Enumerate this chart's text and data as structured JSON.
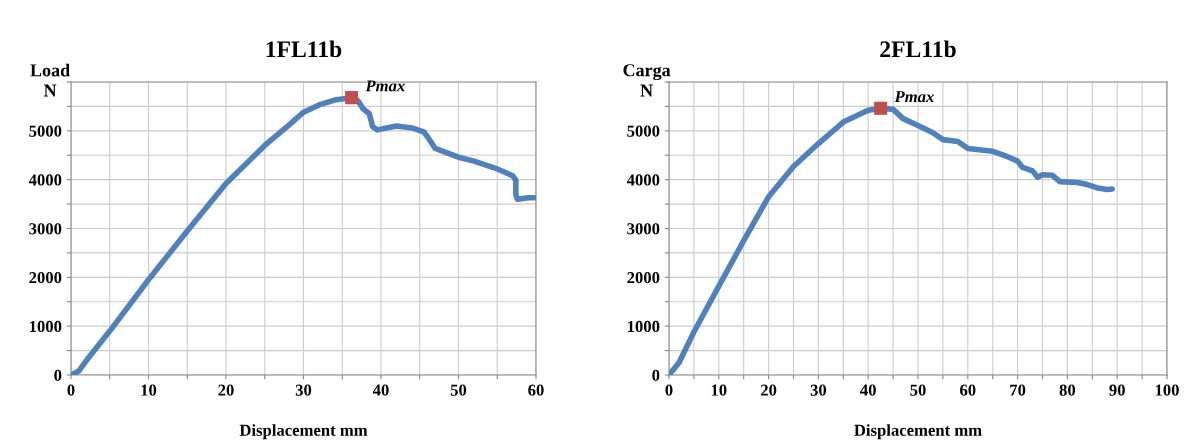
{
  "chart_data": [
    {
      "type": "line",
      "title": "1FL11b",
      "xlabel": "Displacement mm",
      "ylabel": "Load\nN",
      "grid": true,
      "xlim": [
        0,
        60
      ],
      "ylim": [
        0,
        6000
      ],
      "xticks": [
        0,
        {
          "value": 5,
          "label": null
        },
        10,
        {
          "value": 15,
          "label": null
        },
        20,
        {
          "value": 25,
          "label": null
        },
        30,
        {
          "value": 35,
          "label": null
        },
        40,
        {
          "value": 45,
          "label": null
        },
        50,
        {
          "value": 55,
          "label": null
        },
        60
      ],
      "yticks": [
        0,
        {
          "value": 500,
          "label": null
        },
        1000,
        {
          "value": 1500,
          "label": null
        },
        2000,
        {
          "value": 2500,
          "label": null
        },
        3000,
        {
          "value": 3500,
          "label": null
        },
        4000,
        {
          "value": 4500,
          "label": null
        },
        5000,
        {
          "value": 5500,
          "label": null
        },
        {
          "value": 6000,
          "label": null
        }
      ],
      "annotations": [
        {
          "text": "Pmax",
          "x": 36.2,
          "y": 5680
        }
      ],
      "series": [
        {
          "color": "#4f81bd",
          "x": [
            0,
            1,
            2,
            5,
            10,
            15,
            20,
            25,
            28,
            30,
            32,
            34,
            36.2,
            37,
            37.7,
            38.5,
            38.9,
            39.5,
            42,
            44,
            45.5,
            46,
            47,
            48,
            50,
            52,
            55,
            57,
            57.4,
            57.4,
            57.6,
            59,
            60
          ],
          "values": [
            0,
            80,
            300,
            900,
            1950,
            2950,
            3920,
            4700,
            5100,
            5380,
            5530,
            5630,
            5680,
            5620,
            5450,
            5350,
            5090,
            5020,
            5100,
            5060,
            4980,
            4880,
            4640,
            4580,
            4460,
            4380,
            4220,
            4080,
            3990,
            3700,
            3600,
            3630,
            3630
          ]
        },
        {
          "type": "scatter",
          "color": "#c0504d",
          "marker": "square",
          "x": [
            36.2
          ],
          "values": [
            5680
          ]
        }
      ]
    },
    {
      "type": "line",
      "title": "2FL11b",
      "xlabel": "Displacement mm",
      "ylabel": "Carga\nN",
      "grid": true,
      "xlim": [
        0,
        100
      ],
      "ylim": [
        0,
        6000
      ],
      "xticks": [
        0,
        {
          "value": 5,
          "label": null
        },
        10,
        {
          "value": 15,
          "label": null
        },
        20,
        {
          "value": 25,
          "label": null
        },
        30,
        {
          "value": 35,
          "label": null
        },
        40,
        {
          "value": 45,
          "label": null
        },
        50,
        {
          "value": 55,
          "label": null
        },
        60,
        {
          "value": 65,
          "label": null
        },
        70,
        {
          "value": 75,
          "label": null
        },
        80,
        {
          "value": 85,
          "label": null
        },
        90,
        {
          "value": 95,
          "label": null
        },
        100
      ],
      "yticks": [
        0,
        {
          "value": 500,
          "label": null
        },
        1000,
        {
          "value": 1500,
          "label": null
        },
        2000,
        {
          "value": 2500,
          "label": null
        },
        3000,
        {
          "value": 3500,
          "label": null
        },
        4000,
        {
          "value": 4500,
          "label": null
        },
        5000,
        {
          "value": 5500,
          "label": null
        },
        {
          "value": 6000,
          "label": null
        }
      ],
      "annotations": [
        {
          "text": "Pmax",
          "x": 42.5,
          "y": 5460
        }
      ],
      "series": [
        {
          "color": "#4f81bd",
          "x": [
            0,
            2,
            5,
            10,
            15,
            20,
            25,
            30,
            35,
            40,
            42.5,
            45,
            47,
            50,
            53,
            55,
            58,
            60,
            65,
            68,
            70,
            71,
            73,
            74,
            75,
            77,
            78.5,
            82,
            84,
            86,
            88,
            89
          ],
          "values": [
            0,
            250,
            880,
            1820,
            2750,
            3650,
            4270,
            4740,
            5180,
            5420,
            5460,
            5440,
            5250,
            5110,
            4960,
            4820,
            4780,
            4640,
            4580,
            4470,
            4380,
            4250,
            4180,
            4050,
            4100,
            4090,
            3960,
            3940,
            3900,
            3830,
            3800,
            3810
          ]
        },
        {
          "type": "scatter",
          "color": "#c0504d",
          "marker": "square",
          "x": [
            42.5
          ],
          "values": [
            5460
          ]
        }
      ]
    }
  ]
}
